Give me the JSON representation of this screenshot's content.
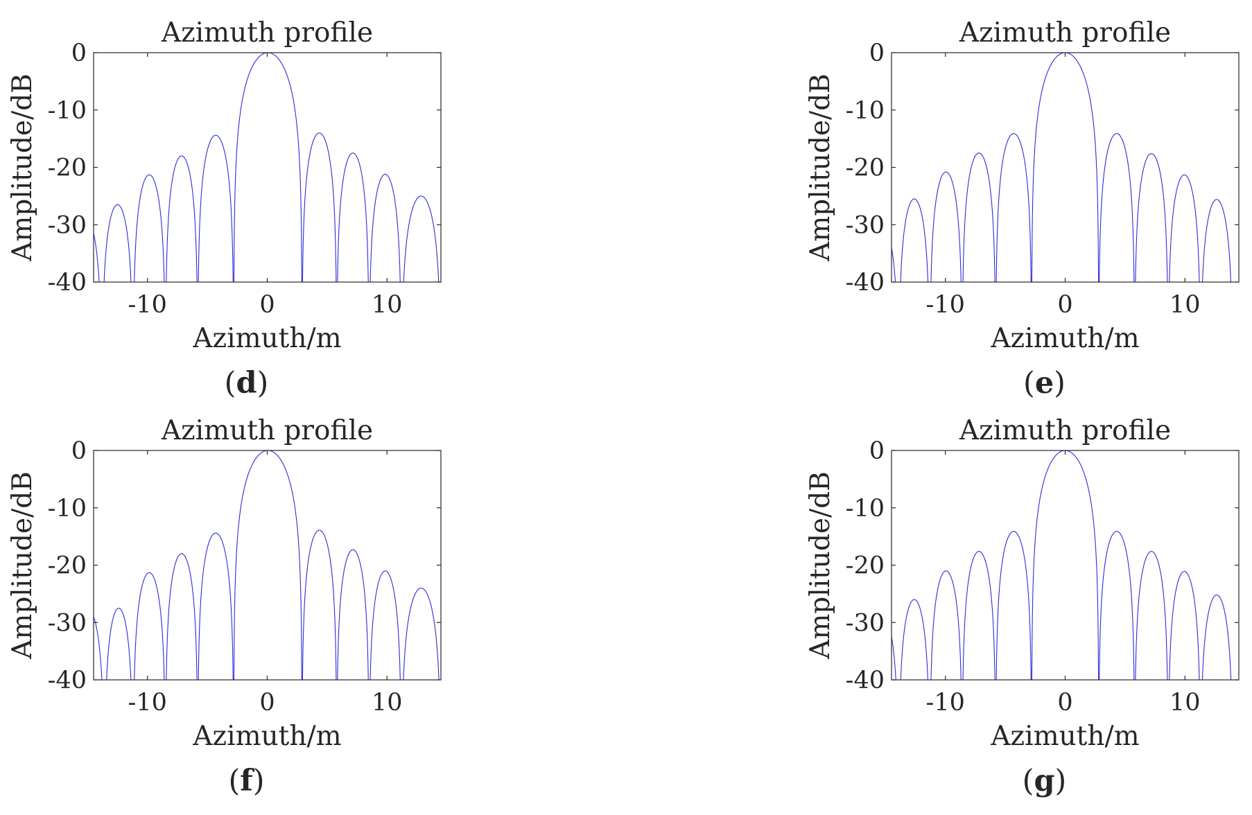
{
  "figure": {
    "colors": {
      "series": "#2b2bd9",
      "axes": "#262626",
      "background": "#ffffff"
    }
  },
  "chart_data": [
    {
      "panel": "(d)",
      "panel_letter": "d",
      "type": "line",
      "title": "Azimuth profile",
      "xlabel": "Azimuth/m",
      "ylabel": "Amplitude/dB",
      "xlim": [
        -14.5,
        14.5
      ],
      "ylim": [
        -40,
        0
      ],
      "xticks": [
        -10,
        0,
        10
      ],
      "xtick_labels": [
        "-10",
        "0",
        "10"
      ],
      "yticks": [
        0,
        -10,
        -20,
        -30,
        -40
      ],
      "ytick_labels": [
        "0",
        "-10",
        "-20",
        "-30",
        "-40"
      ],
      "grid": false,
      "series": [
        {
          "nulls": [
            -13.8,
            -11.2,
            -8.5,
            -5.8,
            -2.8,
            2.9,
            5.8,
            8.5,
            11.2,
            14.5
          ],
          "peaks": [
            {
              "x": -12.6,
              "y": -26.5
            },
            {
              "x": -9.8,
              "y": -21.3
            },
            {
              "x": -7.1,
              "y": -18.0
            },
            {
              "x": -4.2,
              "y": -14.4
            },
            {
              "x": 0.0,
              "y": 0.0
            },
            {
              "x": 4.3,
              "y": -14.0
            },
            {
              "x": 7.1,
              "y": -17.5
            },
            {
              "x": 9.8,
              "y": -21.2
            },
            {
              "x": 12.7,
              "y": -25.0
            }
          ],
          "left_edge": {
            "x": -14.5,
            "y": -31.5
          }
        }
      ]
    },
    {
      "panel": "(e)",
      "panel_letter": "e",
      "type": "line",
      "title": "Azimuth profile",
      "xlabel": "Azimuth/m",
      "ylabel": "Amplitude/dB",
      "xlim": [
        -14.5,
        14.5
      ],
      "ylim": [
        -40,
        0
      ],
      "xticks": [
        -10,
        0,
        10
      ],
      "xtick_labels": [
        "-10",
        "0",
        "10"
      ],
      "yticks": [
        0,
        -10,
        -20,
        -30,
        -40
      ],
      "ytick_labels": [
        "0",
        "-10",
        "-20",
        "-30",
        "-40"
      ],
      "grid": false,
      "series": [
        {
          "nulls": [
            -13.9,
            -11.3,
            -8.6,
            -5.8,
            -2.8,
            2.8,
            5.8,
            8.6,
            11.3,
            14.0
          ],
          "peaks": [
            {
              "x": -12.7,
              "y": -25.5
            },
            {
              "x": -9.8,
              "y": -20.8
            },
            {
              "x": -7.1,
              "y": -17.5
            },
            {
              "x": -4.2,
              "y": -14.1
            },
            {
              "x": 0.0,
              "y": 0.0
            },
            {
              "x": 4.2,
              "y": -14.1
            },
            {
              "x": 7.1,
              "y": -17.6
            },
            {
              "x": 9.8,
              "y": -21.3
            },
            {
              "x": 12.6,
              "y": -25.6
            }
          ],
          "left_edge": {
            "x": -14.5,
            "y": -34.0
          }
        }
      ]
    },
    {
      "panel": "(f)",
      "panel_letter": "f",
      "type": "line",
      "title": "Azimuth profile",
      "xlabel": "Azimuth/m",
      "ylabel": "Amplitude/dB",
      "xlim": [
        -14.5,
        14.5
      ],
      "ylim": [
        -40,
        0
      ],
      "xticks": [
        -10,
        0,
        10
      ],
      "xtick_labels": [
        "-10",
        "0",
        "10"
      ],
      "yticks": [
        0,
        -10,
        -20,
        -30,
        -40
      ],
      "ytick_labels": [
        "0",
        "-10",
        "-20",
        "-30",
        "-40"
      ],
      "grid": false,
      "series": [
        {
          "nulls": [
            -13.6,
            -11.2,
            -8.5,
            -5.8,
            -2.8,
            2.9,
            5.8,
            8.5,
            11.2,
            14.5
          ],
          "peaks": [
            {
              "x": -12.6,
              "y": -27.5
            },
            {
              "x": -9.8,
              "y": -21.3
            },
            {
              "x": -7.1,
              "y": -18.0
            },
            {
              "x": -4.2,
              "y": -14.4
            },
            {
              "x": 0.0,
              "y": 0.0
            },
            {
              "x": 4.3,
              "y": -13.9
            },
            {
              "x": 7.1,
              "y": -17.3
            },
            {
              "x": 9.9,
              "y": -21.0
            },
            {
              "x": 12.8,
              "y": -24.0
            }
          ],
          "left_edge": {
            "x": -14.5,
            "y": -29.0
          }
        }
      ]
    },
    {
      "panel": "(g)",
      "panel_letter": "g",
      "type": "line",
      "title": "Azimuth profile",
      "xlabel": "Azimuth/m",
      "ylabel": "Amplitude/dB",
      "xlim": [
        -14.5,
        14.5
      ],
      "ylim": [
        -40,
        0
      ],
      "xticks": [
        -10,
        0,
        10
      ],
      "xtick_labels": [
        "-10",
        "0",
        "10"
      ],
      "yticks": [
        0,
        -10,
        -20,
        -30,
        -40
      ],
      "ytick_labels": [
        "0",
        "-10",
        "-20",
        "-30",
        "-40"
      ],
      "grid": false,
      "series": [
        {
          "nulls": [
            -13.9,
            -11.3,
            -8.6,
            -5.8,
            -2.8,
            2.8,
            5.8,
            8.6,
            11.3,
            14.0
          ],
          "peaks": [
            {
              "x": -12.7,
              "y": -26.0
            },
            {
              "x": -9.8,
              "y": -21.0
            },
            {
              "x": -7.1,
              "y": -17.6
            },
            {
              "x": -4.2,
              "y": -14.1
            },
            {
              "x": 0.0,
              "y": 0.0
            },
            {
              "x": 4.2,
              "y": -14.1
            },
            {
              "x": 7.1,
              "y": -17.6
            },
            {
              "x": 9.8,
              "y": -21.1
            },
            {
              "x": 12.6,
              "y": -25.2
            }
          ],
          "left_edge": {
            "x": -14.5,
            "y": -32.5
          }
        }
      ]
    }
  ]
}
